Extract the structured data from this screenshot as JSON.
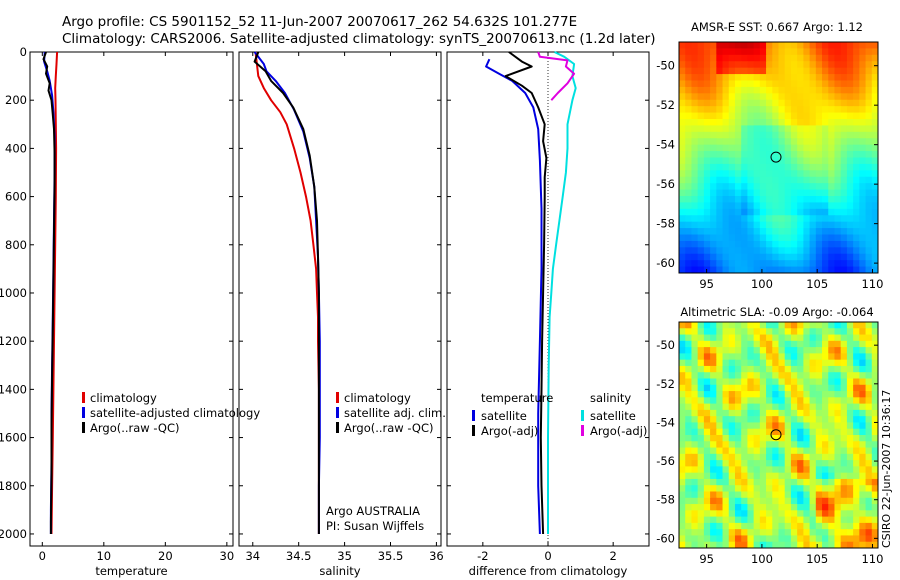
{
  "header": {
    "line1": "Argo profile: CS 5901152_52 11-Jun-2007 20070617_262 54.632S 101.277E",
    "line2": "Climatology: CARS2006. Satellite-adjusted climatology: synTS_20070613.nc (1.2d later)"
  },
  "side_label": "CSIRO 22-Jun-2007 10:36:17",
  "chart_data": [
    {
      "id": "temperature",
      "type": "line",
      "xlabel": "temperature",
      "ylabel": "",
      "xlim": [
        -2,
        31
      ],
      "ylim": [
        2050,
        0
      ],
      "xticks": [
        0,
        10,
        20,
        30
      ],
      "yticks": [
        0,
        200,
        400,
        600,
        800,
        1000,
        1200,
        1400,
        1600,
        1800,
        2000
      ],
      "legend": {
        "placement": "bottom-right",
        "entries": [
          "climatology",
          "satellite-adjusted climatology",
          "Argo(..raw -QC)"
        ]
      },
      "series": [
        {
          "name": "climatology",
          "color": "#e00000",
          "points": [
            [
              2.4,
              0
            ],
            [
              2.3,
              50
            ],
            [
              2.2,
              100
            ],
            [
              2.1,
              150
            ],
            [
              2.15,
              200
            ],
            [
              2.2,
              300
            ],
            [
              2.25,
              400
            ],
            [
              2.2,
              600
            ],
            [
              2.1,
              800
            ],
            [
              2.0,
              1000
            ],
            [
              1.9,
              1200
            ],
            [
              1.8,
              1400
            ],
            [
              1.7,
              1600
            ],
            [
              1.6,
              1800
            ],
            [
              1.5,
              2000
            ]
          ]
        },
        {
          "name": "satellite-adjusted climatology",
          "color": "#0000e0",
          "points": [
            [
              0.4,
              0
            ],
            [
              0.3,
              40
            ],
            [
              0.8,
              80
            ],
            [
              1.2,
              120
            ],
            [
              1.6,
              180
            ],
            [
              1.8,
              250
            ],
            [
              2.0,
              350
            ],
            [
              2.0,
              500
            ],
            [
              1.9,
              700
            ],
            [
              1.8,
              900
            ],
            [
              1.7,
              1100
            ],
            [
              1.6,
              1300
            ],
            [
              1.5,
              1500
            ],
            [
              1.5,
              1700
            ],
            [
              1.4,
              1900
            ],
            [
              1.4,
              2000
            ]
          ]
        },
        {
          "name": "Argo(..raw -QC)",
          "color": "#000000",
          "points": [
            [
              0.6,
              0
            ],
            [
              0.2,
              30
            ],
            [
              0.8,
              60
            ],
            [
              0.6,
              90
            ],
            [
              1.2,
              130
            ],
            [
              1.0,
              160
            ],
            [
              1.5,
              200
            ],
            [
              1.7,
              260
            ],
            [
              1.9,
              320
            ],
            [
              2.0,
              420
            ],
            [
              2.0,
              550
            ],
            [
              1.9,
              750
            ],
            [
              1.8,
              950
            ],
            [
              1.7,
              1150
            ],
            [
              1.6,
              1350
            ],
            [
              1.5,
              1550
            ],
            [
              1.5,
              1750
            ],
            [
              1.4,
              1950
            ],
            [
              1.4,
              2000
            ]
          ]
        }
      ]
    },
    {
      "id": "salinity",
      "type": "line",
      "xlabel": "salinity",
      "ylabel": "",
      "xlim": [
        33.85,
        36.05
      ],
      "ylim": [
        2050,
        0
      ],
      "xticks": [
        34,
        34.5,
        35,
        35.5,
        36
      ],
      "yticks": [],
      "legend": {
        "placement": "bottom-right",
        "entries": [
          "climatology",
          "satellite adj. clim.",
          "Argo(..raw -QC)"
        ]
      },
      "series": [
        {
          "name": "climatology",
          "color": "#e00000",
          "points": [
            [
              34.03,
              0
            ],
            [
              34.06,
              100
            ],
            [
              34.12,
              150
            ],
            [
              34.2,
              200
            ],
            [
              34.3,
              250
            ],
            [
              34.37,
              300
            ],
            [
              34.45,
              400
            ],
            [
              34.52,
              500
            ],
            [
              34.58,
              600
            ],
            [
              34.63,
              700
            ],
            [
              34.66,
              800
            ],
            [
              34.69,
              900
            ],
            [
              34.7,
              1000
            ],
            [
              34.71,
              1100
            ],
            [
              34.71,
              1200
            ],
            [
              34.72,
              1400
            ],
            [
              34.72,
              1600
            ],
            [
              34.72,
              1800
            ],
            [
              34.72,
              2000
            ]
          ]
        },
        {
          "name": "satellite adj. clim.",
          "color": "#0000e0",
          "points": [
            [
              34.02,
              0
            ],
            [
              34.12,
              50
            ],
            [
              34.15,
              80
            ],
            [
              34.25,
              120
            ],
            [
              34.35,
              170
            ],
            [
              34.45,
              240
            ],
            [
              34.55,
              330
            ],
            [
              34.62,
              440
            ],
            [
              34.67,
              560
            ],
            [
              34.69,
              700
            ],
            [
              34.71,
              850
            ],
            [
              34.72,
              1000
            ],
            [
              34.73,
              1200
            ],
            [
              34.73,
              1400
            ],
            [
              34.73,
              1600
            ],
            [
              34.72,
              1800
            ],
            [
              34.72,
              2000
            ]
          ]
        },
        {
          "name": "Argo(..raw -QC)",
          "color": "#000000",
          "points": [
            [
              34.06,
              0
            ],
            [
              34.02,
              40
            ],
            [
              34.14,
              80
            ],
            [
              34.2,
              120
            ],
            [
              34.33,
              170
            ],
            [
              34.44,
              230
            ],
            [
              34.55,
              320
            ],
            [
              34.62,
              430
            ],
            [
              34.67,
              560
            ],
            [
              34.7,
              700
            ],
            [
              34.71,
              850
            ],
            [
              34.72,
              1000
            ],
            [
              34.72,
              1200
            ],
            [
              34.72,
              1400
            ],
            [
              34.72,
              1600
            ],
            [
              34.72,
              1800
            ],
            [
              34.72,
              2000
            ]
          ]
        }
      ],
      "annotation": [
        "Argo AUSTRALIA",
        "PI: Susan Wijffels"
      ]
    },
    {
      "id": "difference",
      "type": "line",
      "xlabel": "difference from climatology",
      "ylabel": "",
      "xlim": [
        -3.1,
        3.1
      ],
      "ylim": [
        2050,
        0
      ],
      "xticks": [
        -2,
        0,
        2
      ],
      "yticks": [],
      "legend": {
        "placement": "bottom-center",
        "groups": [
          {
            "title": "temperature",
            "entries": [
              "satellite",
              "Argo(-adj)"
            ]
          },
          {
            "title": "salinity",
            "entries": [
              "satellite",
              "Argo(-adj)"
            ]
          }
        ]
      },
      "series": [
        {
          "name": "temperature satellite",
          "color": "#0000e0",
          "points": [
            [
              -1.8,
              30
            ],
            [
              -1.9,
              60
            ],
            [
              -1.5,
              90
            ],
            [
              -1.1,
              120
            ],
            [
              -0.7,
              170
            ],
            [
              -0.45,
              230
            ],
            [
              -0.3,
              320
            ],
            [
              -0.25,
              450
            ],
            [
              -0.2,
              650
            ],
            [
              -0.2,
              900
            ],
            [
              -0.25,
              1200
            ],
            [
              -0.3,
              1500
            ],
            [
              -0.3,
              1800
            ],
            [
              -0.25,
              2000
            ]
          ]
        },
        {
          "name": "temperature Argo(-adj)",
          "color": "#000000",
          "points": [
            [
              -1.2,
              0
            ],
            [
              -0.8,
              40
            ],
            [
              -0.5,
              60
            ],
            [
              -1.3,
              100
            ],
            [
              -0.8,
              140
            ],
            [
              -0.5,
              170
            ],
            [
              -0.3,
              230
            ],
            [
              -0.1,
              300
            ],
            [
              -0.15,
              370
            ],
            [
              -0.05,
              440
            ],
            [
              -0.1,
              520
            ],
            [
              -0.1,
              600
            ],
            [
              -0.12,
              800
            ],
            [
              -0.15,
              1000
            ],
            [
              -0.18,
              1200
            ],
            [
              -0.2,
              1400
            ],
            [
              -0.22,
              1600
            ],
            [
              -0.2,
              1800
            ],
            [
              -0.15,
              2000
            ]
          ]
        },
        {
          "name": "salinity satellite",
          "color": "#00e0e0",
          "points": [
            [
              0.2,
              0
            ],
            [
              0.5,
              20
            ],
            [
              0.8,
              50
            ],
            [
              0.75,
              100
            ],
            [
              0.85,
              150
            ],
            [
              0.75,
              200
            ],
            [
              0.6,
              300
            ],
            [
              0.6,
              400
            ],
            [
              0.55,
              500
            ],
            [
              0.45,
              600
            ],
            [
              0.35,
              700
            ],
            [
              0.25,
              800
            ],
            [
              0.15,
              900
            ],
            [
              0.1,
              1000
            ],
            [
              0.05,
              1100
            ],
            [
              0.02,
              1300
            ],
            [
              0.0,
              1600
            ],
            [
              0.0,
              2000
            ]
          ]
        },
        {
          "name": "salinity Argo(-adj)",
          "color": "#e000e0",
          "points": [
            [
              -0.3,
              0
            ],
            [
              -0.25,
              20
            ],
            [
              0.6,
              35
            ],
            [
              0.55,
              60
            ],
            [
              0.8,
              90
            ],
            [
              0.6,
              130
            ],
            [
              0.3,
              170
            ],
            [
              0.1,
              200
            ]
          ]
        }
      ]
    },
    {
      "id": "sst_map",
      "type": "heatmap",
      "title": "AMSR-E SST: 0.667 Argo: 1.12",
      "xlim": [
        92.5,
        110.5
      ],
      "ylim": [
        -60.5,
        -48.8
      ],
      "xticks": [
        95,
        100,
        105,
        110
      ],
      "yticks": [
        -50,
        -52,
        -54,
        -56,
        -58,
        -60
      ],
      "marker": [
        101.277,
        -54.632
      ]
    },
    {
      "id": "sla_map",
      "type": "heatmap",
      "title": "Altimetric SLA: -0.09 Argo: -0.064",
      "xlim": [
        92.5,
        110.5
      ],
      "ylim": [
        -60.5,
        -48.8
      ],
      "xticks": [
        95,
        100,
        105,
        110
      ],
      "yticks": [
        -50,
        -52,
        -54,
        -56,
        -58,
        -60
      ],
      "marker": [
        101.277,
        -54.632
      ]
    }
  ]
}
